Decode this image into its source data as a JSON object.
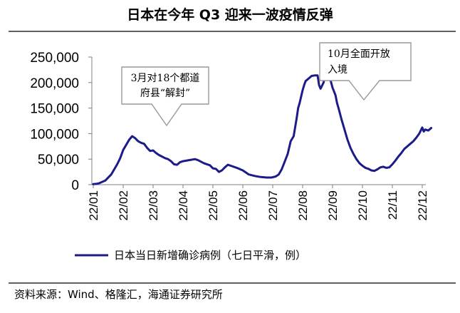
{
  "header": {
    "title": "日本在今年 Q3 迎来一波疫情反弹"
  },
  "source": "资料来源：Wind、格隆汇，海通证券研究所",
  "colors": {
    "series": "#1b1b8a",
    "rule": "#000000",
    "axis": "#808080",
    "callout_border": "#9a9a9a"
  },
  "chart_data": {
    "type": "line",
    "title": "日本在今年 Q3 迎来一波疫情反弹",
    "xlabel": "",
    "ylabel": "",
    "ylim": [
      0,
      250000
    ],
    "yticks": [
      0,
      50000,
      100000,
      150000,
      200000,
      250000
    ],
    "ytick_labels": [
      "0",
      "50,000",
      "100,000",
      "150,000",
      "200,000",
      "250,000"
    ],
    "xticks": [
      "22/01",
      "22/02",
      "22/03",
      "22/04",
      "22/05",
      "22/06",
      "22/07",
      "22/08",
      "22/09",
      "22/10",
      "22/11",
      "22/12"
    ],
    "x_unit": "month index (0 = 22/01)",
    "grid": false,
    "legend_position": "bottom",
    "series": [
      {
        "name": "日本当日新增确诊病例（七日平滑，例）",
        "x": [
          0,
          0.1,
          0.2,
          0.4,
          0.6,
          0.8,
          0.9,
          1.0,
          1.1,
          1.2,
          1.3,
          1.4,
          1.5,
          1.6,
          1.7,
          1.8,
          1.9,
          2.0,
          2.1,
          2.2,
          2.3,
          2.4,
          2.5,
          2.6,
          2.7,
          2.8,
          2.9,
          3.0,
          3.2,
          3.4,
          3.5,
          3.7,
          3.9,
          4.0,
          4.1,
          4.2,
          4.3,
          4.4,
          4.5,
          4.6,
          4.8,
          5.0,
          5.2,
          5.4,
          5.6,
          5.8,
          5.95,
          6.0,
          6.1,
          6.2,
          6.3,
          6.4,
          6.5,
          6.6,
          6.7,
          6.8,
          6.85,
          6.9,
          7.0,
          7.05,
          7.1,
          7.2,
          7.3,
          7.4,
          7.5,
          7.55,
          7.6,
          7.7,
          7.8,
          7.9,
          8.0,
          8.1,
          8.15,
          8.2,
          8.3,
          8.4,
          8.5,
          8.6,
          8.7,
          8.8,
          8.9,
          9.0,
          9.1,
          9.2,
          9.3,
          9.4,
          9.5,
          9.6,
          9.7,
          9.8,
          9.9,
          10.0,
          10.1,
          10.2,
          10.3,
          10.4,
          10.5,
          10.6,
          10.7,
          10.8,
          10.9,
          11.0,
          11.05,
          11.1,
          11.2,
          11.3
        ],
        "y": [
          1000,
          1500,
          3000,
          8000,
          20000,
          40000,
          52000,
          68000,
          78000,
          88000,
          95000,
          91000,
          85000,
          82000,
          80000,
          72000,
          66000,
          67000,
          62000,
          58000,
          55000,
          52000,
          50000,
          46000,
          40000,
          39000,
          44000,
          46000,
          48000,
          50000,
          48000,
          42000,
          38000,
          32000,
          31000,
          25000,
          28000,
          34000,
          39000,
          37000,
          33000,
          28000,
          20000,
          17000,
          15000,
          14000,
          14000,
          14500,
          16000,
          20000,
          30000,
          45000,
          60000,
          85000,
          95000,
          130000,
          150000,
          160000,
          185000,
          195000,
          203000,
          208000,
          213000,
          214000,
          214000,
          195000,
          188000,
          200000,
          226000,
          212000,
          190000,
          175000,
          160000,
          150000,
          128000,
          108000,
          88000,
          72000,
          60000,
          50000,
          42000,
          37000,
          33000,
          31000,
          28000,
          27000,
          30000,
          34000,
          35000,
          33000,
          34000,
          40000,
          47000,
          55000,
          62000,
          70000,
          75000,
          80000,
          85000,
          92000,
          100000,
          112000,
          104000,
          108000,
          106000,
          111000
        ]
      }
    ]
  },
  "annotations": [
    {
      "id": "march",
      "lines": [
        "3月对18个都道",
        "府县“解封”"
      ]
    },
    {
      "id": "october",
      "lines": [
        "10月全面开放",
        "入境"
      ]
    }
  ]
}
